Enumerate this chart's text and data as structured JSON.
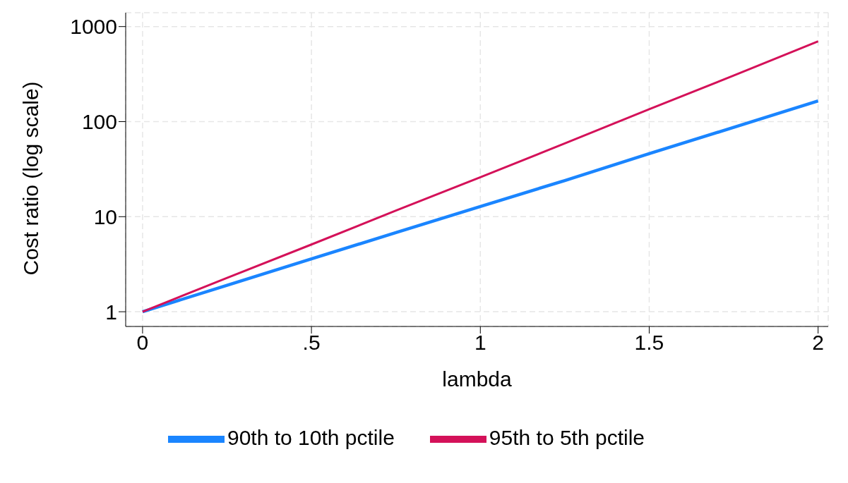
{
  "chart_data": {
    "type": "line",
    "xlabel": "lambda",
    "ylabel": "Cost ratio (log scale)",
    "x": [
      0,
      0.25,
      0.5,
      0.75,
      1,
      1.25,
      1.5,
      1.75,
      2
    ],
    "series": [
      {
        "name": "90th to 10th pctile",
        "color": "#1a85ff",
        "values": [
          1,
          1.9,
          3.6,
          6.8,
          12.8,
          24,
          46,
          87,
          165
        ]
      },
      {
        "name": "95th to 5th pctile",
        "color": "#d41159",
        "values": [
          1,
          2.27,
          5.1,
          11.6,
          26,
          59,
          135,
          305,
          700
        ]
      }
    ],
    "xlim": [
      -0.05,
      2.03
    ],
    "xticks": [
      0,
      {
        "value": 0.5,
        "label": ".5"
      },
      1,
      {
        "value": 1.5,
        "label": "1.5"
      },
      2
    ],
    "ylim": [
      0.7,
      1400
    ],
    "yticks": [
      1,
      10,
      100,
      1000
    ],
    "log": "y",
    "grid": true,
    "legend": "bottom",
    "marker": "none",
    "line_style": "solid"
  }
}
